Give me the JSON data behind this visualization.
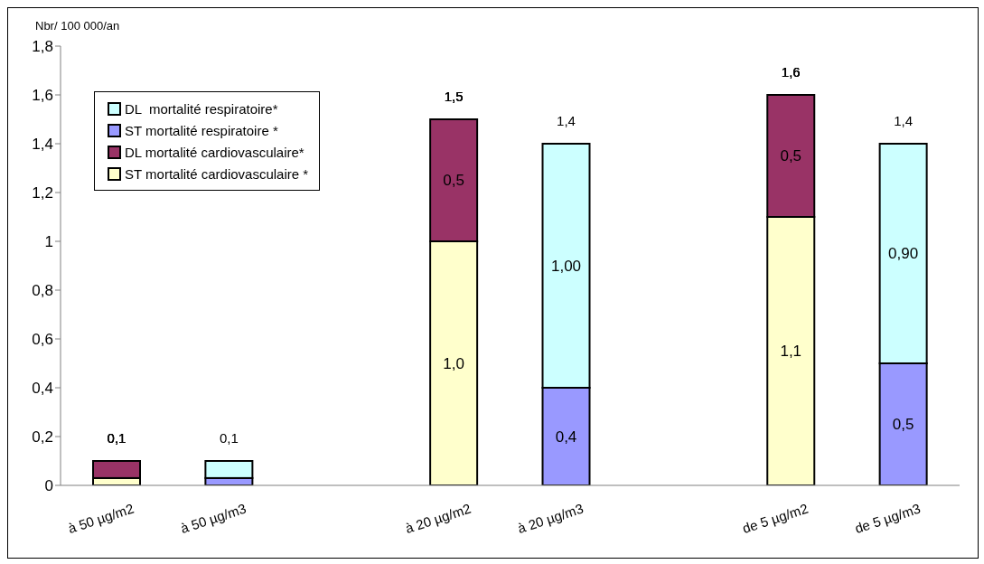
{
  "chart_data": {
    "type": "bar",
    "stacked": true,
    "ylabel": "Nbr/ 100 000/an",
    "categories": [
      "à 50 µg/m2",
      "à 50 µg/m3",
      null,
      "à 20 µg/m2",
      "à 20 µg/m3",
      null,
      "de 5 µg/m2",
      "de 5 µg/m3"
    ],
    "series": [
      {
        "name": "ST mortalité cardiovasculaire *",
        "color": "#ffffcc",
        "values": [
          0.03,
          null,
          null,
          1.0,
          null,
          null,
          1.1,
          null
        ],
        "value_labels": [
          null,
          null,
          null,
          "1,0",
          null,
          null,
          "1,1",
          null
        ]
      },
      {
        "name": "DL mortalité cardiovasculaire*",
        "color": "#993366",
        "values": [
          0.07,
          null,
          null,
          0.5,
          null,
          null,
          0.5,
          null
        ],
        "value_labels": [
          null,
          null,
          null,
          "0,5",
          null,
          null,
          "0,5",
          null
        ]
      },
      {
        "name": "ST mortalité respiratoire *",
        "color": "#9999ff",
        "values": [
          null,
          0.03,
          null,
          null,
          0.4,
          null,
          null,
          0.5
        ],
        "value_labels": [
          null,
          null,
          null,
          null,
          "0,4",
          null,
          null,
          "0,5"
        ]
      },
      {
        "name": "DL  mortalité respiratoire*",
        "color": "#ccffff",
        "values": [
          null,
          0.07,
          null,
          null,
          1.0,
          null,
          null,
          0.9
        ],
        "value_labels": [
          null,
          null,
          null,
          null,
          "1,00",
          null,
          null,
          "0,90"
        ]
      }
    ],
    "totals": [
      "0,1",
      "0,1",
      null,
      "1,5",
      "1,4",
      null,
      "1,6",
      "1,4"
    ],
    "ylim": [
      0,
      1.8
    ],
    "yticks": [
      0,
      {
        "value": 0.2,
        "label": "0,2"
      },
      {
        "value": 0.4,
        "label": "0,4"
      },
      {
        "value": 0.6,
        "label": "0,6"
      },
      {
        "value": 0.8,
        "label": "0,8"
      },
      1,
      {
        "value": 1.2,
        "label": "1,2"
      },
      {
        "value": 1.4,
        "label": "1,4"
      },
      {
        "value": 1.6,
        "label": "1,6"
      },
      {
        "value": 1.8,
        "label": "1,8"
      }
    ],
    "grid": false,
    "legend": "top left"
  }
}
